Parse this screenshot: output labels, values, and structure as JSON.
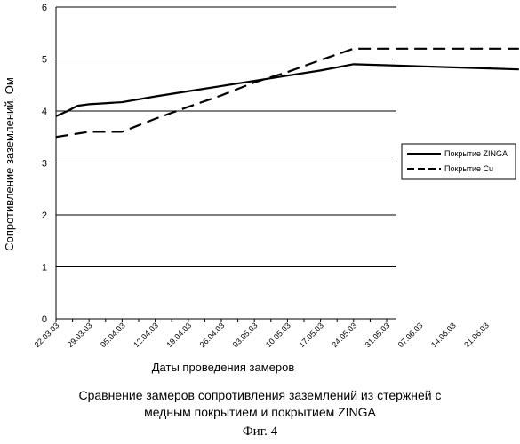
{
  "chart_data": {
    "type": "line",
    "title": "",
    "xlabel": "Даты проведения замеров",
    "ylabel": "Сопротивление заземлений, Ом",
    "ylim": [
      0,
      6
    ],
    "yticks": [
      0,
      1,
      2,
      3,
      4,
      5,
      6
    ],
    "categories": [
      "22.03.03",
      "29.03.03",
      "05.04.03",
      "12.04.03",
      "19.04.03",
      "26.04.03",
      "03.05.03",
      "10.05.03",
      "17.05.03",
      "24.05.03",
      "31.05.03",
      "07.06.03",
      "14.06.03",
      "21.06.03"
    ],
    "grid": "horizontal",
    "legend_position": "right",
    "series": [
      {
        "name": "Покрытие ZINGA",
        "style": "solid",
        "points": [
          [
            0,
            3.9
          ],
          [
            0.35,
            4.0
          ],
          [
            0.65,
            4.1
          ],
          [
            1.0,
            4.13
          ],
          [
            1.5,
            4.15
          ],
          [
            2.0,
            4.17
          ],
          [
            3.0,
            4.28
          ],
          [
            4.0,
            4.38
          ],
          [
            5.0,
            4.48
          ],
          [
            6.0,
            4.58
          ],
          [
            7.0,
            4.68
          ],
          [
            8.0,
            4.78
          ],
          [
            9.0,
            4.9
          ],
          [
            10.0,
            4.88
          ],
          [
            11.0,
            4.86
          ],
          [
            12.0,
            4.84
          ],
          [
            13.0,
            4.82
          ],
          [
            14.0,
            4.8
          ]
        ]
      },
      {
        "name": "Покрытие Cu",
        "style": "dashed",
        "points": [
          [
            0,
            3.5
          ],
          [
            1.0,
            3.6
          ],
          [
            2.0,
            3.6
          ],
          [
            3.0,
            3.85
          ],
          [
            4.0,
            4.08
          ],
          [
            5.0,
            4.3
          ],
          [
            6.0,
            4.55
          ],
          [
            7.0,
            4.75
          ],
          [
            8.0,
            4.98
          ],
          [
            9.0,
            5.2
          ],
          [
            10.0,
            5.2
          ],
          [
            11.0,
            5.2
          ],
          [
            12.0,
            5.2
          ],
          [
            13.0,
            5.2
          ],
          [
            14.0,
            5.2
          ]
        ]
      }
    ]
  },
  "caption": {
    "line1": "Сравнение замеров сопротивления заземлений из стержней с",
    "line2": "медным покрытием и покрытием ZINGA",
    "figure": "Фиг. 4"
  }
}
